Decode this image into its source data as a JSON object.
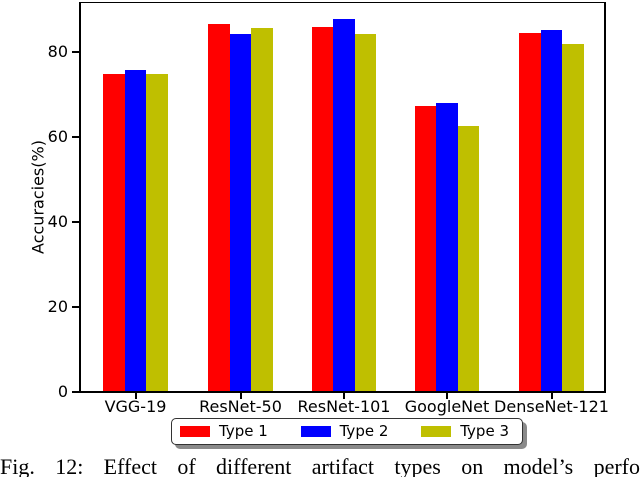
{
  "chart_data": {
    "type": "bar",
    "title": "",
    "xlabel": "",
    "ylabel": "Accuracies(%)",
    "categories": [
      "VGG-19",
      "ResNet-50",
      "ResNet-101",
      "GoogleNet",
      "DenseNet-121"
    ],
    "series": [
      {
        "name": "Type 1",
        "color": "#ff0000",
        "values": [
          74.8,
          86.5,
          85.9,
          67.4,
          84.5
        ]
      },
      {
        "name": "Type 2",
        "color": "#0000ff",
        "values": [
          75.8,
          84.3,
          87.8,
          68.0,
          85.2
        ]
      },
      {
        "name": "Type 3",
        "color": "#bfbf00",
        "values": [
          74.8,
          85.7,
          84.3,
          62.5,
          82.0
        ]
      }
    ],
    "ylim": [
      0,
      91.8
    ],
    "yticks": [
      0,
      20,
      40,
      60,
      80
    ],
    "grid": false,
    "legend_position": "below-axis-centered"
  },
  "caption": {
    "text": "Fig. 12: Effect of different artifact types on model’s perfo"
  }
}
